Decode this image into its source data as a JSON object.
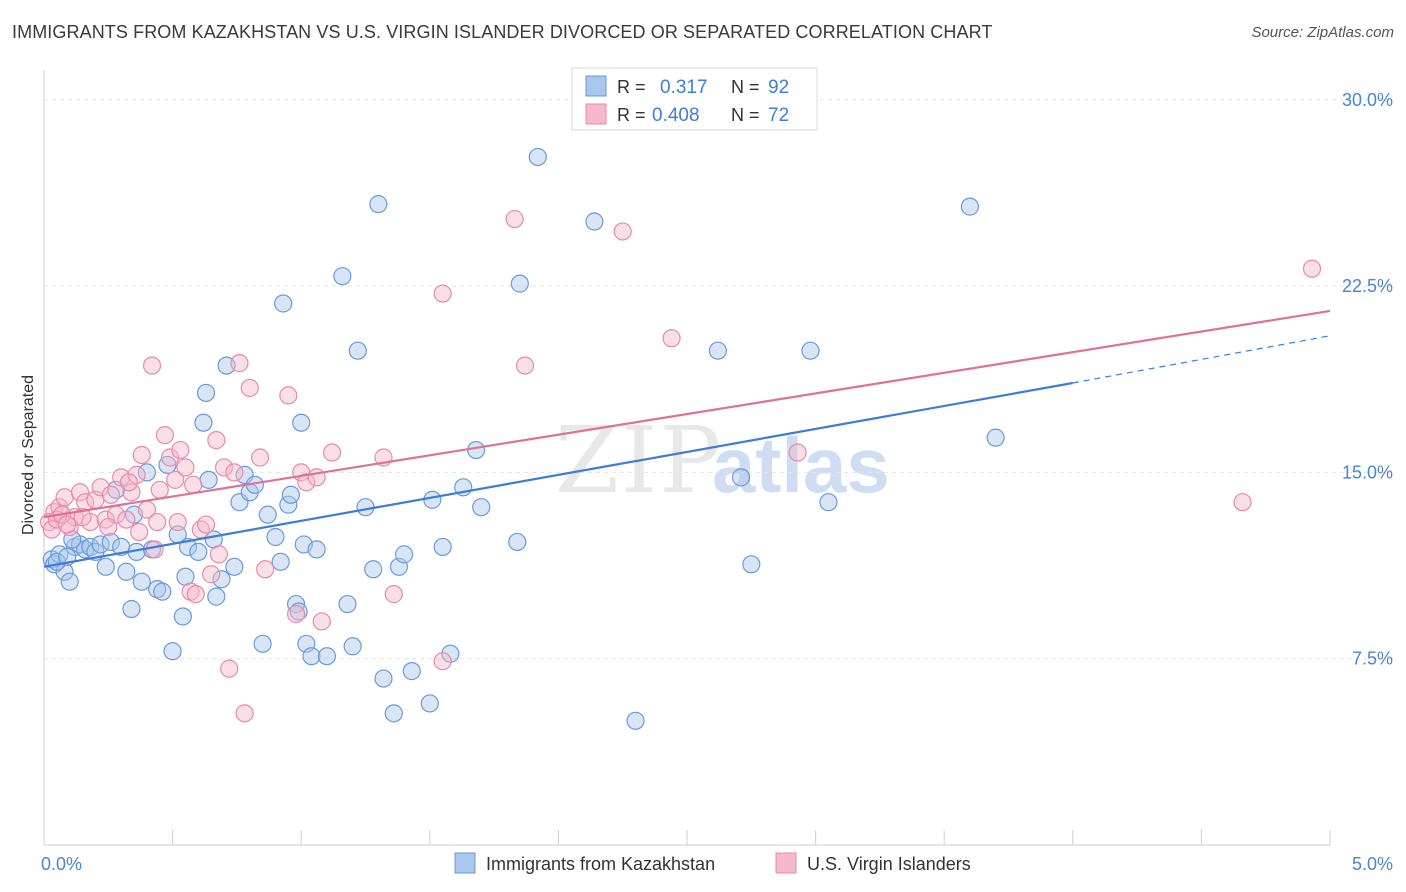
{
  "header": {
    "title": "IMMIGRANTS FROM KAZAKHSTAN VS U.S. VIRGIN ISLANDER DIVORCED OR SEPARATED CORRELATION CHART",
    "source": "Source: ZipAtlas.com"
  },
  "watermark": "ZIPatlas",
  "legend": {
    "r_label": "R =",
    "n_label": "N =",
    "rows": [
      {
        "r": "0.317",
        "n": "92"
      },
      {
        "r": "0.408",
        "n": "72"
      }
    ]
  },
  "bottom_legend": [
    "Immigrants from Kazakhstan",
    "U.S. Virgin Islanders"
  ],
  "colors": {
    "blue_fill": "#a9c6ec",
    "blue_stroke": "#6a9bd8",
    "blue_line": "#3b7dd8",
    "pink_fill": "#f5b8cc",
    "pink_stroke": "#e88aa8",
    "pink_line": "#e0709a",
    "tick_text": "#4a86cc"
  },
  "chart_data": {
    "type": "scatter",
    "title": "IMMIGRANTS FROM KAZAKHSTAN VS U.S. VIRGIN ISLANDER DIVORCED OR SEPARATED CORRELATION CHART",
    "xlabel": "",
    "ylabel": "Divorced or Separated",
    "xlim": [
      0,
      5
    ],
    "ylim": [
      0,
      31.2
    ],
    "x_tick_labels": [
      {
        "value": 0,
        "label": "0.0%"
      },
      {
        "value": 5,
        "label": "5.0%"
      }
    ],
    "y_ticks": [
      {
        "value": 7.5,
        "label": "7.5%"
      },
      {
        "value": 15,
        "label": "15.0%"
      },
      {
        "value": 22.5,
        "label": "22.5%"
      },
      {
        "value": 30,
        "label": "30.0%"
      }
    ],
    "grid": true,
    "legend_position": "top-center",
    "series": [
      {
        "name": "Immigrants from Kazakhstan",
        "color": "#6a9bd8",
        "trend": {
          "x0": 0,
          "y0": 11.2,
          "x1": 4,
          "y1": 18.6,
          "dash_to_x": 5,
          "dash_to_y": 20.5
        },
        "points": [
          [
            0.03,
            11.5
          ],
          [
            0.04,
            11.3
          ],
          [
            0.06,
            11.7
          ],
          [
            0.08,
            11.0
          ],
          [
            0.1,
            10.6
          ],
          [
            0.12,
            12.0
          ],
          [
            0.14,
            12.1
          ],
          [
            0.16,
            11.9
          ],
          [
            0.18,
            12.0
          ],
          [
            0.2,
            11.8
          ],
          [
            0.22,
            12.1
          ],
          [
            0.24,
            11.2
          ],
          [
            0.26,
            12.2
          ],
          [
            0.28,
            14.3
          ],
          [
            0.3,
            12.0
          ],
          [
            0.32,
            11.0
          ],
          [
            0.34,
            9.5
          ],
          [
            0.36,
            11.8
          ],
          [
            0.38,
            10.6
          ],
          [
            0.4,
            15.0
          ],
          [
            0.42,
            11.9
          ],
          [
            0.44,
            10.3
          ],
          [
            0.46,
            10.2
          ],
          [
            0.48,
            15.3
          ],
          [
            0.5,
            7.8
          ],
          [
            0.52,
            12.5
          ],
          [
            0.54,
            9.2
          ],
          [
            0.56,
            12.0
          ],
          [
            0.6,
            11.8
          ],
          [
            0.62,
            17.0
          ],
          [
            0.63,
            18.2
          ],
          [
            0.64,
            14.7
          ],
          [
            0.66,
            12.3
          ],
          [
            0.67,
            10.0
          ],
          [
            0.69,
            10.7
          ],
          [
            0.71,
            19.3
          ],
          [
            0.74,
            11.2
          ],
          [
            0.76,
            13.8
          ],
          [
            0.78,
            14.9
          ],
          [
            0.8,
            14.2
          ],
          [
            0.82,
            14.5
          ],
          [
            0.85,
            8.1
          ],
          [
            0.87,
            13.3
          ],
          [
            0.9,
            12.4
          ],
          [
            0.92,
            11.4
          ],
          [
            0.93,
            21.8
          ],
          [
            0.95,
            13.7
          ],
          [
            0.96,
            14.1
          ],
          [
            0.98,
            9.7
          ],
          [
            0.99,
            9.4
          ],
          [
            1.0,
            17.0
          ],
          [
            1.01,
            12.1
          ],
          [
            1.02,
            8.1
          ],
          [
            1.04,
            7.6
          ],
          [
            1.06,
            11.9
          ],
          [
            1.1,
            7.6
          ],
          [
            1.16,
            22.9
          ],
          [
            1.18,
            9.7
          ],
          [
            1.2,
            8.0
          ],
          [
            1.22,
            19.9
          ],
          [
            1.25,
            13.6
          ],
          [
            1.28,
            11.1
          ],
          [
            1.3,
            25.8
          ],
          [
            1.32,
            6.7
          ],
          [
            1.36,
            5.3
          ],
          [
            1.38,
            11.2
          ],
          [
            1.4,
            11.7
          ],
          [
            1.43,
            7.0
          ],
          [
            1.5,
            5.7
          ],
          [
            1.51,
            13.9
          ],
          [
            1.55,
            12.0
          ],
          [
            1.58,
            7.7
          ],
          [
            1.63,
            14.4
          ],
          [
            1.7,
            13.6
          ],
          [
            1.84,
            12.2
          ],
          [
            1.85,
            22.6
          ],
          [
            1.92,
            27.7
          ],
          [
            2.14,
            25.1
          ],
          [
            2.3,
            5.0
          ],
          [
            2.62,
            19.9
          ],
          [
            2.71,
            14.8
          ],
          [
            2.75,
            11.3
          ],
          [
            2.98,
            19.9
          ],
          [
            3.05,
            13.8
          ],
          [
            3.6,
            25.7
          ],
          [
            3.7,
            16.4
          ],
          [
            0.05,
            11.4
          ],
          [
            0.09,
            11.6
          ],
          [
            0.11,
            12.3
          ],
          [
            0.55,
            10.8
          ],
          [
            1.68,
            15.9
          ],
          [
            0.35,
            13.3
          ]
        ]
      },
      {
        "name": "U.S. Virgin Islanders",
        "color": "#e88aa8",
        "trend": {
          "x0": 0,
          "y0": 13.2,
          "x1": 5,
          "y1": 21.5
        },
        "points": [
          [
            0.02,
            13.0
          ],
          [
            0.04,
            13.4
          ],
          [
            0.06,
            13.6
          ],
          [
            0.08,
            14.0
          ],
          [
            0.1,
            12.8
          ],
          [
            0.12,
            13.2
          ],
          [
            0.14,
            14.2
          ],
          [
            0.16,
            13.8
          ],
          [
            0.18,
            13.0
          ],
          [
            0.2,
            13.9
          ],
          [
            0.22,
            14.4
          ],
          [
            0.24,
            13.1
          ],
          [
            0.26,
            14.1
          ],
          [
            0.28,
            13.3
          ],
          [
            0.3,
            14.8
          ],
          [
            0.32,
            13.1
          ],
          [
            0.34,
            14.2
          ],
          [
            0.36,
            14.9
          ],
          [
            0.38,
            15.7
          ],
          [
            0.4,
            13.5
          ],
          [
            0.42,
            19.3
          ],
          [
            0.43,
            11.9
          ],
          [
            0.45,
            14.3
          ],
          [
            0.47,
            16.5
          ],
          [
            0.49,
            15.6
          ],
          [
            0.51,
            14.7
          ],
          [
            0.52,
            13.0
          ],
          [
            0.53,
            15.9
          ],
          [
            0.55,
            15.2
          ],
          [
            0.57,
            10.2
          ],
          [
            0.59,
            10.1
          ],
          [
            0.61,
            12.7
          ],
          [
            0.63,
            12.9
          ],
          [
            0.65,
            10.9
          ],
          [
            0.67,
            16.3
          ],
          [
            0.68,
            11.7
          ],
          [
            0.7,
            15.2
          ],
          [
            0.72,
            7.1
          ],
          [
            0.74,
            15.0
          ],
          [
            0.76,
            19.4
          ],
          [
            0.78,
            5.3
          ],
          [
            0.8,
            18.4
          ],
          [
            0.84,
            15.6
          ],
          [
            0.86,
            11.1
          ],
          [
            0.95,
            18.1
          ],
          [
            0.98,
            9.3
          ],
          [
            1.0,
            15.0
          ],
          [
            1.02,
            14.6
          ],
          [
            1.06,
            14.8
          ],
          [
            1.08,
            9.0
          ],
          [
            1.12,
            15.8
          ],
          [
            1.32,
            15.6
          ],
          [
            1.36,
            10.1
          ],
          [
            1.55,
            7.4
          ],
          [
            1.55,
            22.2
          ],
          [
            1.83,
            25.2
          ],
          [
            1.87,
            19.3
          ],
          [
            2.25,
            24.7
          ],
          [
            2.44,
            20.4
          ],
          [
            2.93,
            15.8
          ],
          [
            4.66,
            13.8
          ],
          [
            4.93,
            23.2
          ],
          [
            0.03,
            12.7
          ],
          [
            0.05,
            13.1
          ],
          [
            0.07,
            13.3
          ],
          [
            0.09,
            12.9
          ],
          [
            0.15,
            13.2
          ],
          [
            0.25,
            12.8
          ],
          [
            0.33,
            14.6
          ],
          [
            0.37,
            12.6
          ],
          [
            0.44,
            13.0
          ],
          [
            0.58,
            14.5
          ]
        ]
      }
    ]
  }
}
